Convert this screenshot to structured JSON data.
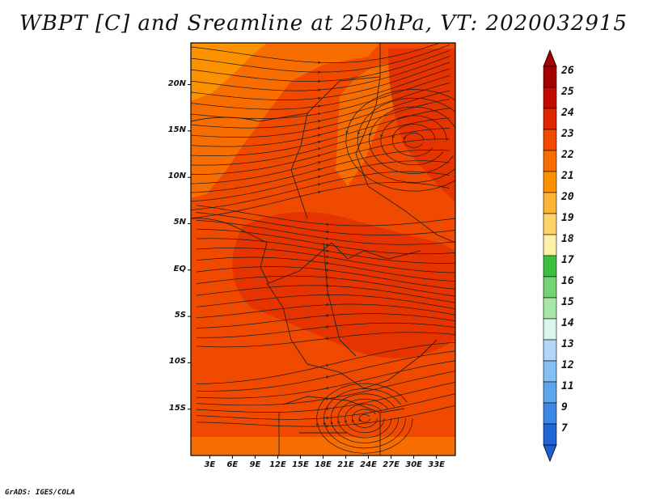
{
  "title": "WBPT [C] and Sreamline at 250hPa, VT: 2020032915",
  "credit": "GrADS: IGES/COLA",
  "map": {
    "lat_ticks": [
      {
        "label": "20N",
        "value": 20
      },
      {
        "label": "15N",
        "value": 15
      },
      {
        "label": "10N",
        "value": 10
      },
      {
        "label": "5N",
        "value": 5
      },
      {
        "label": "EQ",
        "value": 0
      },
      {
        "label": "5S",
        "value": -5
      },
      {
        "label": "10S",
        "value": -10
      },
      {
        "label": "15S",
        "value": -15
      }
    ],
    "lon_ticks": [
      {
        "label": "3E",
        "value": 3
      },
      {
        "label": "6E",
        "value": 6
      },
      {
        "label": "9E",
        "value": 9
      },
      {
        "label": "12E",
        "value": 12
      },
      {
        "label": "15E",
        "value": 15
      },
      {
        "label": "18E",
        "value": 18
      },
      {
        "label": "21E",
        "value": 21
      },
      {
        "label": "24E",
        "value": 24
      },
      {
        "label": "27E",
        "value": 27
      },
      {
        "label": "30E",
        "value": 30
      },
      {
        "label": "33E",
        "value": 33
      }
    ],
    "lon_range": [
      0.5,
      35.5
    ],
    "lat_range": [
      -20,
      24.5
    ]
  },
  "colorbar": {
    "labels": [
      "26",
      "25",
      "24",
      "23",
      "22",
      "21",
      "20",
      "19",
      "18",
      "17",
      "16",
      "15",
      "14",
      "13",
      "12",
      "11",
      "9",
      "7"
    ],
    "colors": [
      "#a50000",
      "#c40a00",
      "#de2600",
      "#ef4a00",
      "#f86d00",
      "#fd9200",
      "#feb536",
      "#fed46b",
      "#fff0a8",
      "#3fbf3f",
      "#74d474",
      "#a6e6a6",
      "#d8f6ea",
      "#b4d7f8",
      "#86bff2",
      "#5ea5ec",
      "#3c86e3",
      "#2165d6"
    ],
    "top_color": "#a50000",
    "bottom_color": "#1e5fd0"
  },
  "field_colors": {
    "warm_23_24": "#ef4a00",
    "warmer_24": "#de2600",
    "cool_22": "#f86d00",
    "cool_21": "#fd9200"
  }
}
